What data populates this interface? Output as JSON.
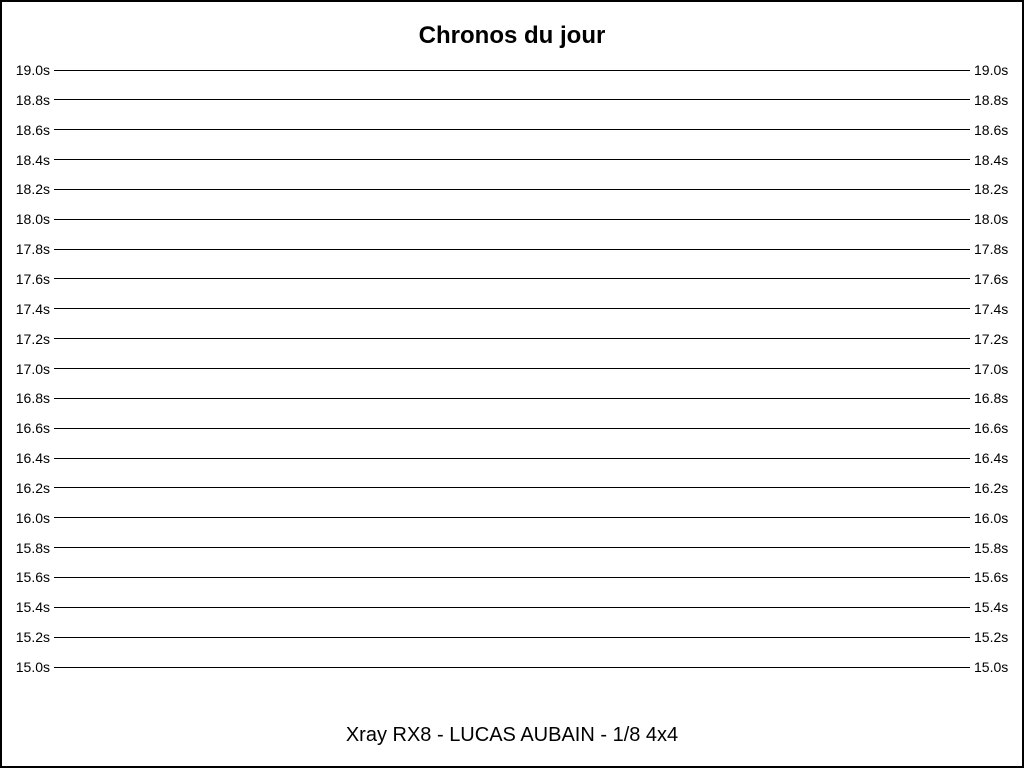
{
  "page": {
    "background_color": "#ffffff",
    "border_color": "#000000"
  },
  "chart_data": {
    "type": "line",
    "title": "Chronos du jour",
    "footer_label": "Xray RX8 - LUCAS AUBAIN - 1/8 4x4",
    "ylabel": "",
    "xlabel": "",
    "ylim": [
      15.0,
      19.0
    ],
    "ytick_step": 0.2,
    "yticks": [
      19.0,
      18.8,
      18.6,
      18.4,
      18.2,
      18.0,
      17.8,
      17.6,
      17.4,
      17.2,
      17.0,
      16.8,
      16.6,
      16.4,
      16.2,
      16.0,
      15.8,
      15.6,
      15.4,
      15.2,
      15.0
    ],
    "ytick_labels": [
      "19.0s",
      "18.8s",
      "18.6s",
      "18.4s",
      "18.2s",
      "18.0s",
      "17.8s",
      "17.6s",
      "17.4s",
      "17.2s",
      "17.0s",
      "16.8s",
      "16.6s",
      "16.4s",
      "16.2s",
      "16.0s",
      "15.8s",
      "15.6s",
      "15.4s",
      "15.2s",
      "15.0s"
    ],
    "tick_labels_on_both_sides": true,
    "series": [],
    "grid": true,
    "legend_position": "none",
    "colors": {
      "gridline": "#000000",
      "text": "#000000",
      "background": "#ffffff"
    }
  }
}
